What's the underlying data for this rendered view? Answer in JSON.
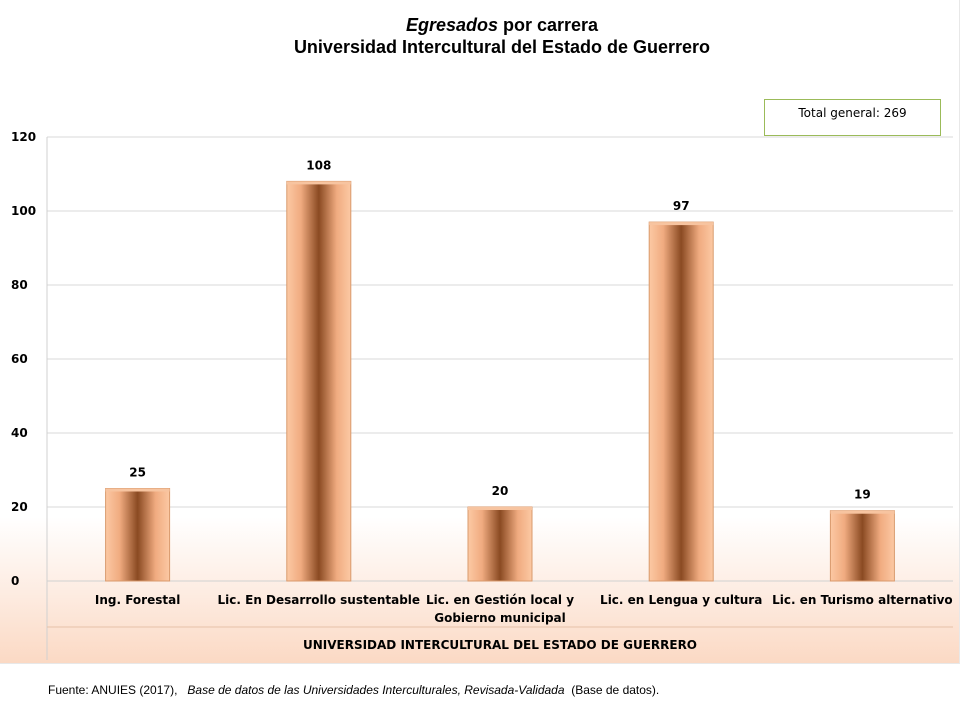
{
  "title": {
    "line1_italic": "Egresados",
    "line1_rest": " por carrera",
    "line2": "Universidad Intercultural del Estado de Guerrero"
  },
  "total_label": "Total general: 269",
  "source": {
    "prefix": "Fuente: ANUIES (2017),",
    "italic": "Base de datos de las Universidades Interculturales, Revisada-Validada",
    "suffix": "(Base de datos)."
  },
  "chart_data": {
    "type": "bar",
    "categories": [
      [
        "Ing. Forestal"
      ],
      [
        "Lic. En Desarrollo sustentable"
      ],
      [
        "Lic. en Gestión local y",
        "Gobierno municipal"
      ],
      [
        "Lic. en Lengua y cultura"
      ],
      [
        "Lic. en Turismo alternativo"
      ]
    ],
    "values": [
      25,
      108,
      20,
      97,
      19
    ],
    "xlabel": "UNIVERSIDAD INTERCULTURAL DEL ESTADO DE GUERRERO",
    "ylabel": "",
    "ylim": [
      0,
      120
    ],
    "yticks": [
      0,
      20,
      40,
      60,
      80,
      100,
      120
    ],
    "grid": true,
    "colors": {
      "bar_edge": "#d99a6c",
      "bar_light": "#fcc9a4",
      "bar_dark": "#8a4a22",
      "grid": "#d9d9d9"
    }
  }
}
